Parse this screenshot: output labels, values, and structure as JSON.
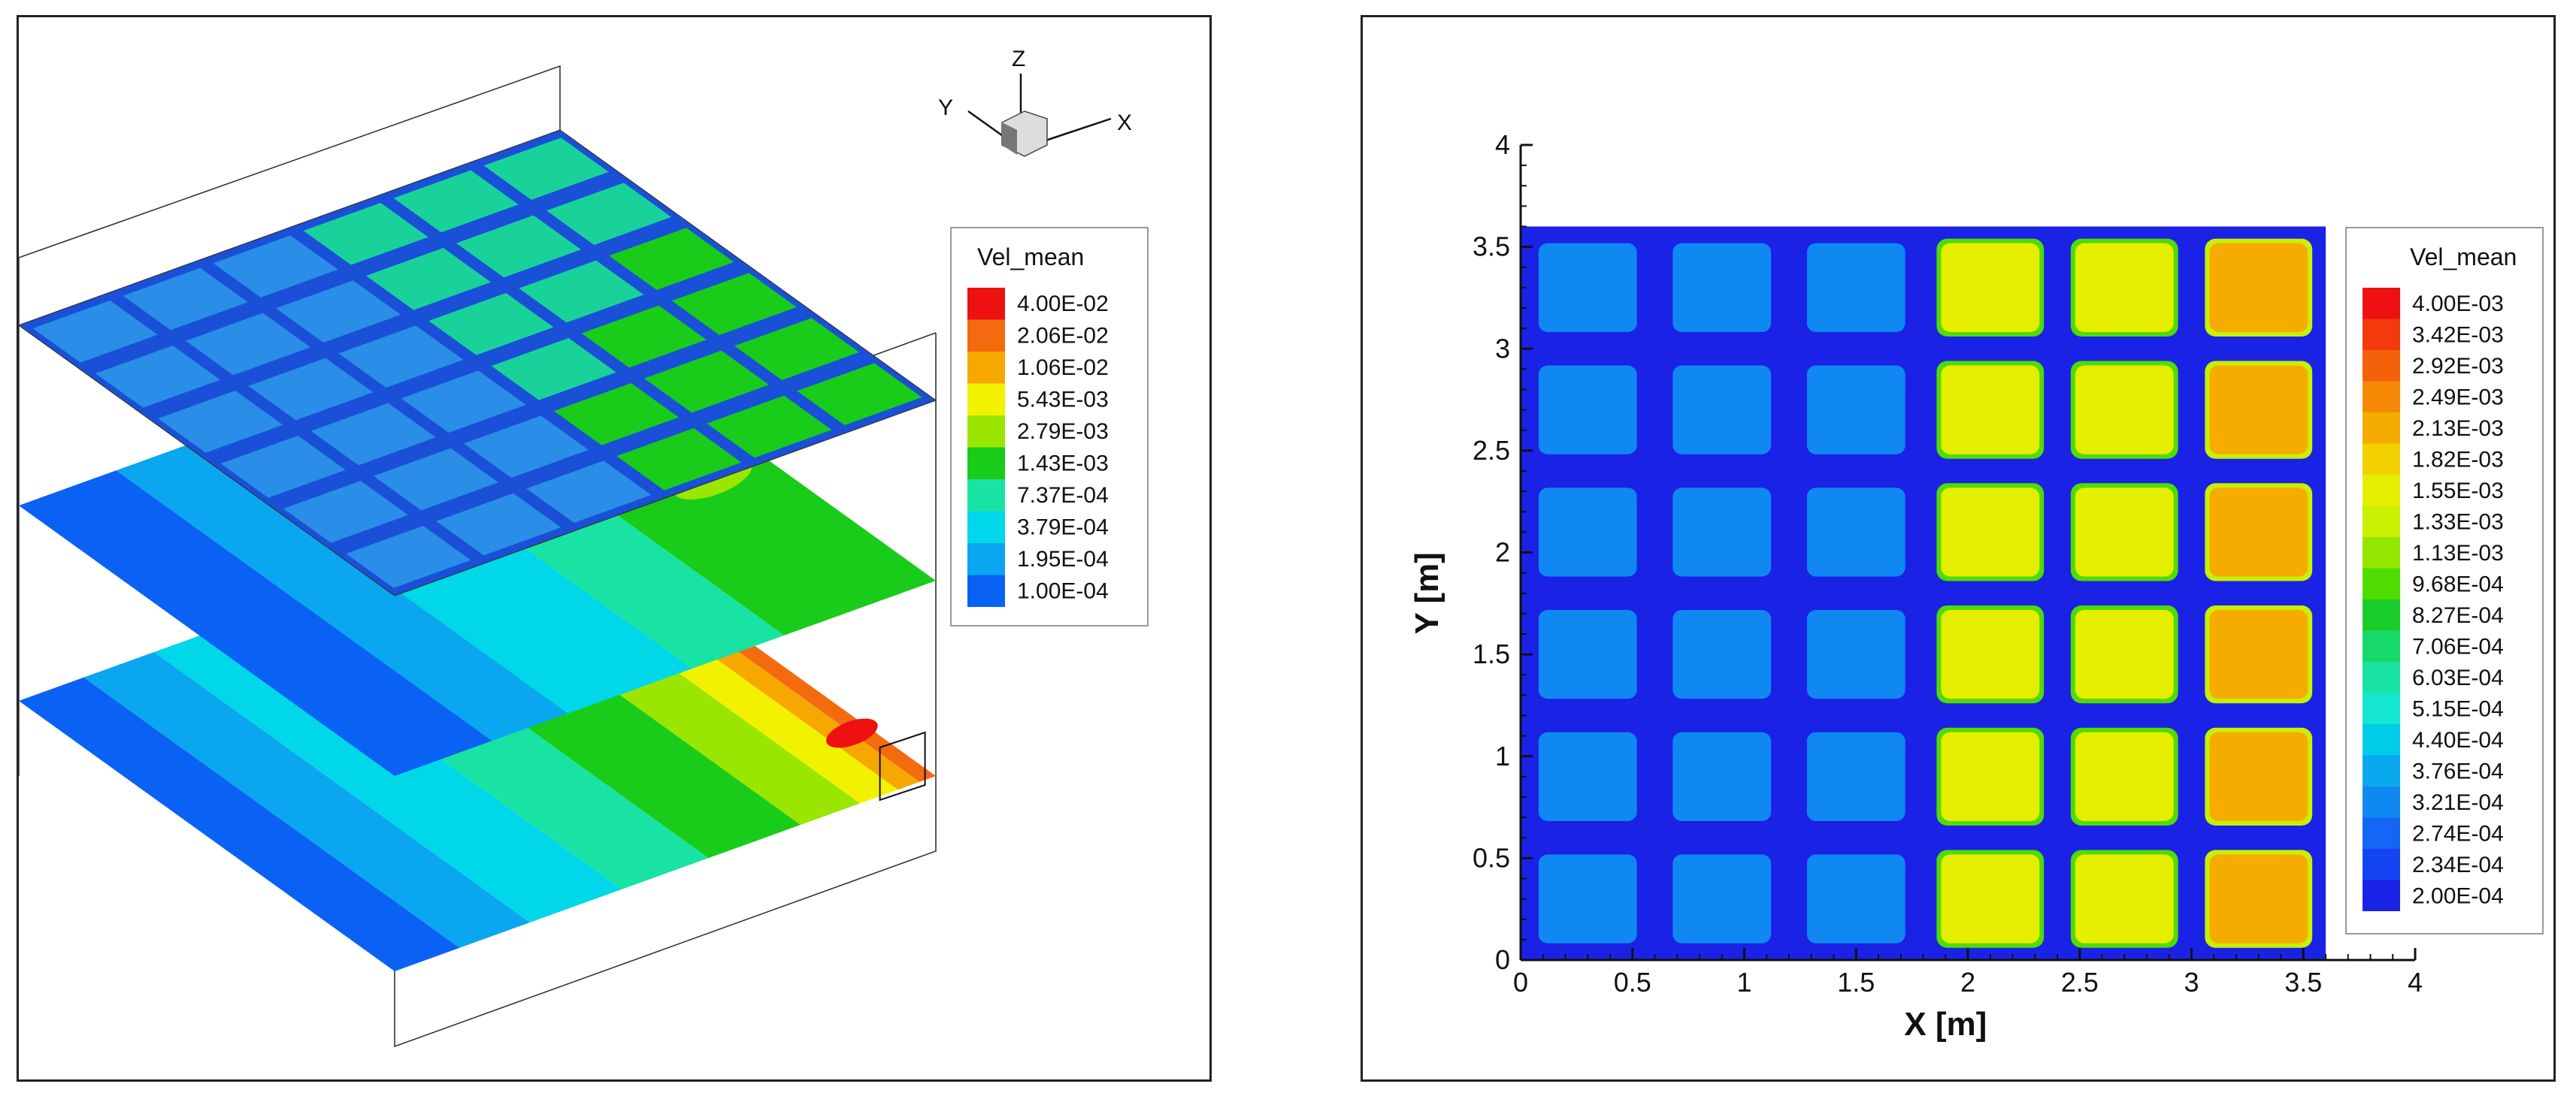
{
  "chart_data": [
    {
      "type": "contour-3d",
      "variable": "Vel_mean",
      "axes_triad": {
        "z": "Z",
        "y": "Y",
        "x": "X"
      },
      "planes": 3,
      "legend": {
        "title": "Vel_mean",
        "placement": "right",
        "levels": [
          "4.00E-02",
          "2.06E-02",
          "1.06E-02",
          "5.43E-03",
          "2.79E-03",
          "1.43E-03",
          "7.37E-04",
          "3.79E-04",
          "1.95E-04",
          "1.00E-04"
        ],
        "colors": [
          "#ee1111",
          "#f46a0f",
          "#f6a800",
          "#f2f200",
          "#9ae600",
          "#19cc19",
          "#19e3a3",
          "#00d7e8",
          "#0aa6f0",
          "#0a62f4"
        ]
      }
    },
    {
      "type": "heatmap",
      "variable": "Vel_mean",
      "xlabel": "X [m]",
      "ylabel": "Y [m]",
      "xlim": [
        0,
        4
      ],
      "ylim": [
        0,
        4
      ],
      "x_ticks": [
        "0",
        "0.5",
        "1",
        "1.5",
        "2",
        "2.5",
        "3",
        "3.5",
        "4"
      ],
      "y_ticks": [
        "0",
        "0.5",
        "1",
        "1.5",
        "2",
        "2.5",
        "3",
        "3.5",
        "4"
      ],
      "domain_extent": {
        "x": [
          0,
          3.6
        ],
        "y": [
          0,
          3.6
        ]
      },
      "cells": {
        "columns": 6,
        "rows": 6,
        "column_values": [
          "3.21E-04",
          "3.21E-04",
          "3.21E-04",
          "1.55E-03",
          "1.55E-03",
          "2.13E-03"
        ],
        "gap_value": "2.00E-04"
      },
      "legend": {
        "title": "Vel_mean",
        "placement": "right",
        "levels": [
          "4.00E-03",
          "3.42E-03",
          "2.92E-03",
          "2.49E-03",
          "2.13E-03",
          "1.82E-03",
          "1.55E-03",
          "1.33E-03",
          "1.13E-03",
          "9.68E-04",
          "8.27E-04",
          "7.06E-04",
          "6.03E-04",
          "5.15E-04",
          "4.40E-04",
          "3.76E-04",
          "3.21E-04",
          "2.74E-04",
          "2.34E-04",
          "2.00E-04"
        ],
        "colors": [
          "#ee1111",
          "#f23a0c",
          "#f5600a",
          "#f68a06",
          "#f6ab00",
          "#f3d100",
          "#e6ee00",
          "#c8f000",
          "#92e600",
          "#4fdc00",
          "#18cc2a",
          "#16d96a",
          "#19e3a3",
          "#14e6d2",
          "#00cce8",
          "#0aa9ef",
          "#1088f2",
          "#1466f4",
          "#1445f2",
          "#1a22e6"
        ]
      }
    }
  ]
}
